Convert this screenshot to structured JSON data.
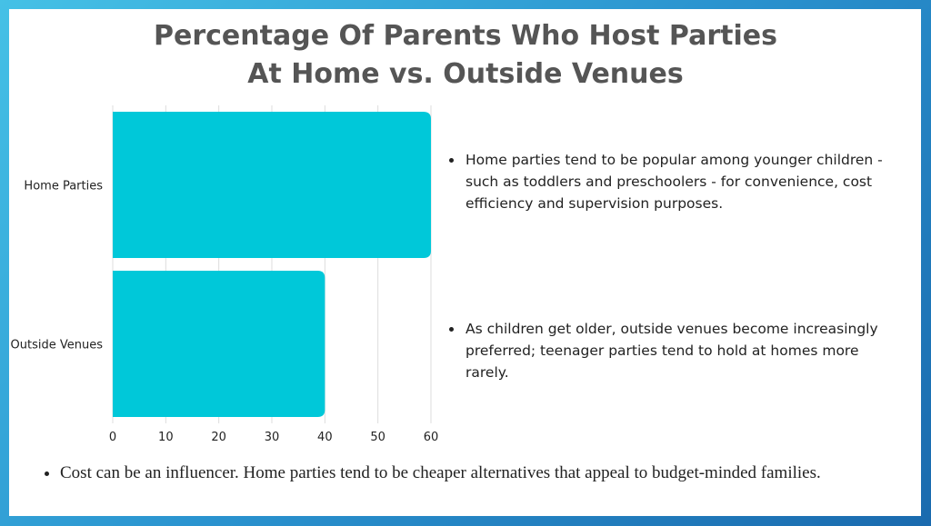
{
  "chart_data": {
    "type": "barh",
    "title": [
      "Percentage Of Parents Who Host Parties",
      "At Home vs. Outside Venues"
    ],
    "categories": [
      "Home Parties",
      "Outside Venues"
    ],
    "values": [
      60,
      40
    ],
    "color": "#00c8d9",
    "xlim": [
      0,
      60
    ],
    "xticks": [
      0,
      10,
      20,
      30,
      40,
      50,
      60
    ],
    "grid": true
  },
  "side_notes": [
    "Home parties tend to be popular among younger children - such as toddlers and preschoolers - for convenience, cost efficiency and supervision purposes.",
    "As children get older, outside venues become increasingly preferred; teenager parties tend to hold at homes more rarely."
  ],
  "footer_note": "Cost can be an influencer. Home parties tend to be cheaper alternatives that appeal to budget-minded families."
}
